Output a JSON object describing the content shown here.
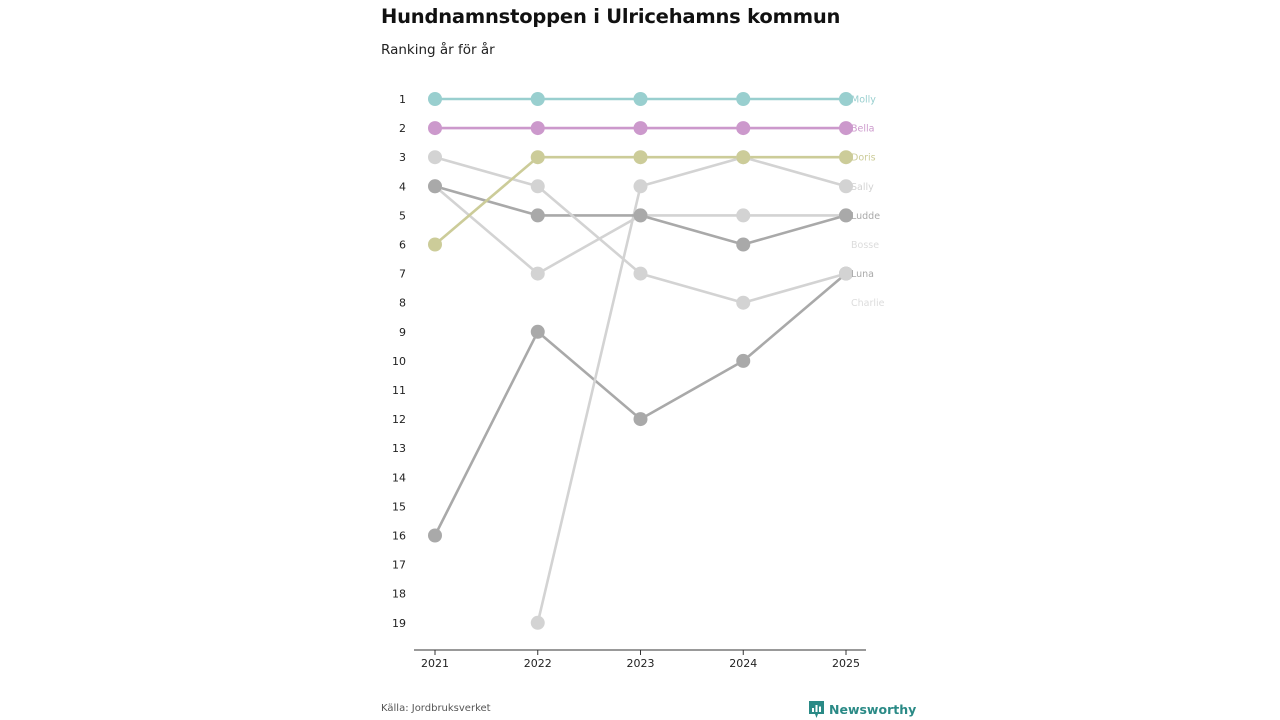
{
  "header": {
    "title": "Hundnamnstoppen i Ulricehamns kommun",
    "subtitle": "Ranking år för år"
  },
  "footer": {
    "source": "Källa: Jordbruksverket",
    "brand": "Newsworthy",
    "brand_icon": "bar-chart-flag-icon"
  },
  "colors": {
    "axis": "#333333",
    "brand": "#2a8a86"
  },
  "chart_data": {
    "type": "line",
    "title": "Hundnamnstoppen i Ulricehamns kommun",
    "subtitle": "Ranking år för år",
    "xlabel": "",
    "ylabel": "",
    "x": [
      "2021",
      "2022",
      "2023",
      "2024",
      "2025"
    ],
    "y_ticks": [
      "1",
      "2",
      "3",
      "4",
      "5",
      "6",
      "7",
      "8",
      "9",
      "10",
      "11",
      "12",
      "13",
      "14",
      "15",
      "16",
      "17",
      "18",
      "19"
    ],
    "ylim": [
      1,
      19
    ],
    "y_inverted": true,
    "grid": false,
    "series": [
      {
        "name": "Molly",
        "color": "#99cfcf",
        "values": [
          1,
          1,
          1,
          1,
          1
        ]
      },
      {
        "name": "Bella",
        "color": "#cc99cc",
        "values": [
          2,
          2,
          2,
          2,
          2
        ]
      },
      {
        "name": "Doris",
        "color": "#cccc99",
        "values": [
          6,
          3,
          3,
          3,
          3
        ]
      },
      {
        "name": "Sally",
        "color": "#d3d3d3",
        "values": [
          3,
          4,
          7,
          8,
          7
        ]
      },
      {
        "name": "Ludde",
        "color": "#a9a9a9",
        "values": [
          4,
          5,
          5,
          6,
          5
        ]
      },
      {
        "name": "Bosse",
        "color": "#d3d3d3",
        "values": [
          null,
          19,
          4,
          3,
          4
        ]
      },
      {
        "name": "Luna",
        "color": "#a9a9a9",
        "values": [
          16,
          9,
          12,
          10,
          7
        ]
      },
      {
        "name": "Charlie",
        "color": "#d3d3d3",
        "values": [
          4,
          7,
          5,
          5,
          5
        ]
      }
    ],
    "end_labels": [
      {
        "name": "Molly",
        "rank": 1,
        "color": "#99cfcf"
      },
      {
        "name": "Bella",
        "rank": 2,
        "color": "#cc99cc"
      },
      {
        "name": "Doris",
        "rank": 3,
        "color": "#cccc99"
      },
      {
        "name": "Sally",
        "rank": 4,
        "color": "#d3d3d3"
      },
      {
        "name": "Ludde",
        "rank": 5,
        "color": "#a9a9a9"
      },
      {
        "name": "Bosse",
        "rank": 6,
        "color": "#dcdcdc"
      },
      {
        "name": "Luna",
        "rank": 7,
        "color": "#a9a9a9"
      },
      {
        "name": "Charlie",
        "rank": 8,
        "color": "#dcdcdc"
      }
    ]
  }
}
